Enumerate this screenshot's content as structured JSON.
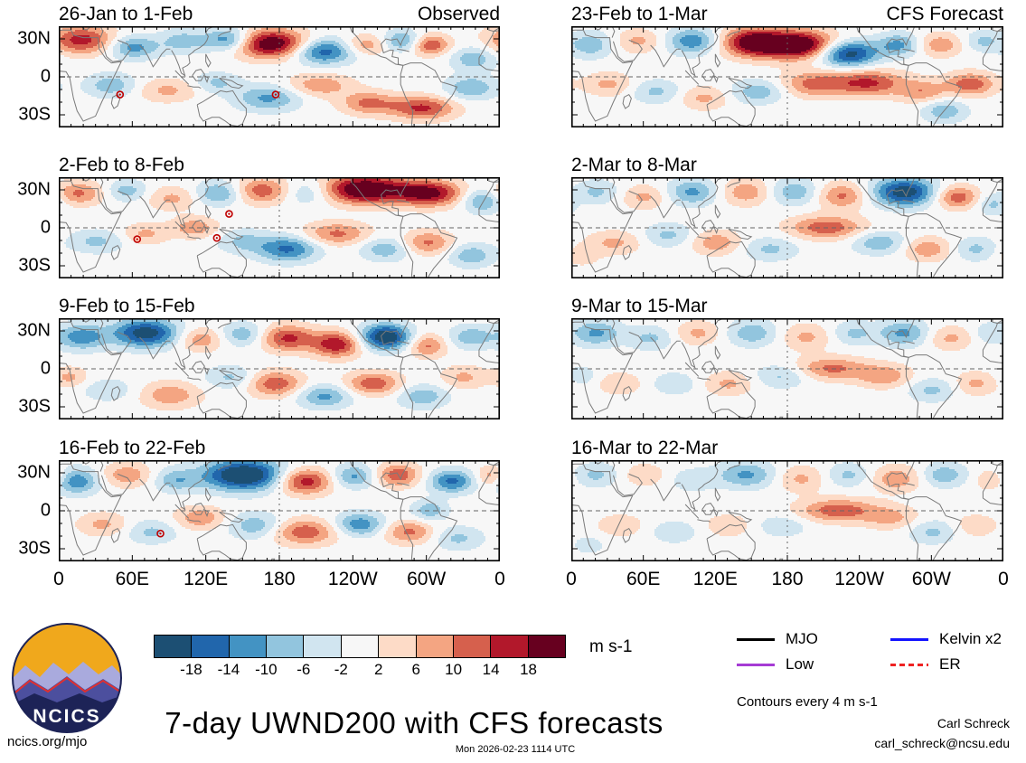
{
  "title": "7-day UWND200 with CFS forecasts",
  "axes": {
    "y_ticks": [
      "30N",
      "0",
      "30S"
    ],
    "x_ticks": [
      "0",
      "60E",
      "120E",
      "180",
      "120W",
      "60W",
      "0"
    ]
  },
  "colorbar": {
    "ticks": [
      "-18",
      "-14",
      "-10",
      "-6",
      "-2",
      "2",
      "6",
      "10",
      "14",
      "18"
    ],
    "unit": "m s-1",
    "colors": [
      "#1c4f73",
      "#2166ac",
      "#4393c3",
      "#92c5de",
      "#d1e5f0",
      "#f7f7f7",
      "#fddbc7",
      "#f4a582",
      "#d6604d",
      "#b2182b",
      "#67001f"
    ]
  },
  "legend": {
    "items": [
      {
        "label": "MJO",
        "color": "#000000",
        "dash": false
      },
      {
        "label": "Kelvin x2",
        "color": "#1414ff",
        "dash": false
      },
      {
        "label": "Low",
        "color": "#a63bd4",
        "dash": false
      },
      {
        "label": "ER",
        "color": "#ee2222",
        "dash": true
      }
    ],
    "note": "Contours every 4 m s-1"
  },
  "branding": {
    "logo_text": "NCICS"
  },
  "footer": {
    "site": "ncics.org/mjo",
    "timestamp": "Mon 2026-02-23 1114 UTC",
    "author": "Carl Schreck",
    "email": "carl_schreck@ncsu.edu"
  },
  "chart_data": {
    "type": "heatmap",
    "variable": "7-day UWND200 anomalies (observed and CFS forecast)",
    "units": "m s-1",
    "contour_interval_ms": 4,
    "levels": [
      -18,
      -14,
      -10,
      -6,
      -2,
      2,
      6,
      10,
      14,
      18
    ],
    "lon_range_deg": [
      0,
      360
    ],
    "lat_range_deg": [
      -40,
      40
    ],
    "columns": [
      "Observed",
      "CFS Forecast"
    ],
    "panels": [
      {
        "title": "26-Jan to 1-Feb",
        "corner": "Observed",
        "column": "Observed",
        "blobs": [
          [
            18,
            30,
            26,
            11,
            16
          ],
          [
            60,
            24,
            20,
            9,
            -12
          ],
          [
            100,
            29,
            18,
            9,
            -8
          ],
          [
            138,
            30,
            20,
            9,
            -15
          ],
          [
            172,
            27,
            30,
            11,
            23
          ],
          [
            215,
            21,
            24,
            10,
            -17
          ],
          [
            250,
            26,
            18,
            8,
            9
          ],
          [
            280,
            29,
            16,
            8,
            -12
          ],
          [
            302,
            26,
            16,
            8,
            14
          ],
          [
            338,
            15,
            18,
            9,
            -9
          ],
          [
            42,
            -6,
            20,
            9,
            -9
          ],
          [
            88,
            -10,
            24,
            9,
            7
          ],
          [
            128,
            -4,
            18,
            8,
            -7
          ],
          [
            170,
            -16,
            26,
            10,
            -11
          ],
          [
            212,
            -6,
            26,
            9,
            9
          ],
          [
            252,
            -20,
            22,
            9,
            11
          ],
          [
            296,
            -24,
            26,
            9,
            15
          ],
          [
            336,
            -8,
            20,
            9,
            -10
          ]
        ],
        "storms": [
          [
            50,
            -14
          ],
          [
            177,
            -14
          ]
        ]
      },
      {
        "title": "2-Feb to 8-Feb",
        "corner": "",
        "column": "Observed",
        "blobs": [
          [
            15,
            28,
            20,
            9,
            11
          ],
          [
            55,
            30,
            16,
            8,
            -8
          ],
          [
            92,
            24,
            20,
            9,
            7
          ],
          [
            130,
            28,
            18,
            9,
            -11
          ],
          [
            166,
            30,
            22,
            10,
            13
          ],
          [
            205,
            29,
            24,
            10,
            -9
          ],
          [
            248,
            31,
            36,
            11,
            25
          ],
          [
            302,
            28,
            26,
            10,
            19
          ],
          [
            345,
            22,
            16,
            9,
            -11
          ],
          [
            30,
            -10,
            22,
            9,
            -7
          ],
          [
            70,
            -4,
            18,
            8,
            7
          ],
          [
            110,
            1,
            18,
            8,
            9
          ],
          [
            150,
            -10,
            20,
            9,
            -7
          ],
          [
            186,
            -16,
            24,
            10,
            -15
          ],
          [
            226,
            -4,
            26,
            9,
            11
          ],
          [
            266,
            -16,
            20,
            9,
            -9
          ],
          [
            300,
            -11,
            20,
            9,
            11
          ],
          [
            336,
            -21,
            18,
            9,
            -9
          ]
        ],
        "storms": [
          [
            139,
            11
          ],
          [
            64,
            -9
          ],
          [
            129,
            -8
          ]
        ]
      },
      {
        "title": "9-Feb to 15-Feb",
        "corner": "",
        "column": "Observed",
        "blobs": [
          [
            18,
            26,
            20,
            10,
            -13
          ],
          [
            70,
            29,
            26,
            11,
            -21
          ],
          [
            115,
            24,
            18,
            9,
            9
          ],
          [
            150,
            28,
            18,
            9,
            -9
          ],
          [
            186,
            25,
            22,
            10,
            15
          ],
          [
            226,
            20,
            20,
            10,
            17
          ],
          [
            266,
            26,
            20,
            10,
            -23
          ],
          [
            300,
            19,
            15,
            9,
            11
          ],
          [
            336,
            26,
            18,
            9,
            -9
          ],
          [
            40,
            -16,
            22,
            9,
            -5
          ],
          [
            90,
            -20,
            24,
            10,
            9
          ],
          [
            140,
            -6,
            20,
            9,
            -7
          ],
          [
            176,
            -11,
            22,
            10,
            13
          ],
          [
            216,
            -21,
            22,
            9,
            -11
          ],
          [
            256,
            -11,
            22,
            9,
            13
          ],
          [
            296,
            -21,
            20,
            9,
            -9
          ],
          [
            330,
            -6,
            18,
            9,
            7
          ],
          [
            8,
            -6,
            14,
            8,
            7
          ]
        ],
        "storms": []
      },
      {
        "title": "16-Feb to 22-Feb",
        "corner": "",
        "column": "Observed",
        "blobs": [
          [
            14,
            24,
            18,
            10,
            -13
          ],
          [
            55,
            29,
            20,
            9,
            9
          ],
          [
            95,
            25,
            18,
            9,
            -9
          ],
          [
            150,
            29,
            32,
            12,
            -25
          ],
          [
            200,
            24,
            22,
            10,
            17
          ],
          [
            240,
            28,
            18,
            9,
            -11
          ],
          [
            276,
            29,
            18,
            9,
            13
          ],
          [
            320,
            24,
            18,
            9,
            -15
          ],
          [
            352,
            28,
            12,
            8,
            9
          ],
          [
            35,
            -10,
            20,
            9,
            7
          ],
          [
            75,
            -16,
            20,
            9,
            -7
          ],
          [
            115,
            -5,
            20,
            9,
            9
          ],
          [
            160,
            -11,
            22,
            10,
            -9
          ],
          [
            200,
            -16,
            26,
            10,
            13
          ],
          [
            245,
            -10,
            20,
            9,
            -13
          ],
          [
            285,
            -16,
            20,
            9,
            11
          ],
          [
            325,
            -21,
            20,
            9,
            -7
          ],
          [
            302,
            1,
            14,
            8,
            -9
          ]
        ],
        "storms": [
          [
            83,
            -18
          ]
        ]
      },
      {
        "title": "23-Feb to 1-Mar",
        "corner": "CFS Forecast",
        "column": "CFS Forecast",
        "blobs": [
          [
            15,
            26,
            18,
            10,
            -9
          ],
          [
            55,
            29,
            18,
            9,
            7
          ],
          [
            100,
            29,
            20,
            10,
            -13
          ],
          [
            150,
            28,
            24,
            11,
            21
          ],
          [
            188,
            26,
            30,
            11,
            25
          ],
          [
            230,
            19,
            24,
            10,
            -21
          ],
          [
            272,
            26,
            18,
            9,
            -11
          ],
          [
            306,
            26,
            18,
            9,
            9
          ],
          [
            342,
            29,
            14,
            8,
            -7
          ],
          [
            30,
            -5,
            20,
            9,
            7
          ],
          [
            70,
            -11,
            20,
            9,
            -7
          ],
          [
            110,
            -16,
            20,
            9,
            7
          ],
          [
            155,
            -11,
            22,
            9,
            -9
          ],
          [
            200,
            -5,
            26,
            10,
            11
          ],
          [
            246,
            -4,
            30,
            10,
            15
          ],
          [
            292,
            -11,
            20,
            9,
            9
          ],
          [
            332,
            -5,
            20,
            9,
            13
          ],
          [
            310,
            -26,
            18,
            9,
            -9
          ]
        ],
        "storms": []
      },
      {
        "title": "2-Mar to 8-Mar",
        "corner": "",
        "column": "CFS Forecast",
        "blobs": [
          [
            20,
            29,
            18,
            9,
            -7
          ],
          [
            60,
            25,
            18,
            9,
            7
          ],
          [
            100,
            29,
            20,
            10,
            -11
          ],
          [
            145,
            29,
            20,
            10,
            9
          ],
          [
            185,
            29,
            20,
            10,
            -9
          ],
          [
            225,
            26,
            20,
            10,
            11
          ],
          [
            277,
            29,
            26,
            11,
            -21
          ],
          [
            320,
            25,
            18,
            9,
            13
          ],
          [
            350,
            19,
            12,
            8,
            -7
          ],
          [
            35,
            -11,
            22,
            9,
            7
          ],
          [
            80,
            -5,
            20,
            9,
            -7
          ],
          [
            120,
            -11,
            20,
            9,
            9
          ],
          [
            165,
            -16,
            22,
            9,
            -7
          ],
          [
            212,
            1,
            30,
            9,
            13
          ],
          [
            256,
            -11,
            22,
            9,
            -9
          ],
          [
            296,
            -16,
            20,
            9,
            9
          ],
          [
            336,
            -16,
            18,
            9,
            -7
          ],
          [
            8,
            -21,
            14,
            8,
            5
          ]
        ],
        "storms": []
      },
      {
        "title": "9-Mar to 15-Mar",
        "corner": "",
        "column": "CFS Forecast",
        "blobs": [
          [
            20,
            29,
            20,
            10,
            -11
          ],
          [
            65,
            25,
            18,
            9,
            -7
          ],
          [
            105,
            29,
            18,
            9,
            7
          ],
          [
            150,
            29,
            20,
            10,
            -9
          ],
          [
            195,
            26,
            20,
            10,
            7
          ],
          [
            235,
            29,
            18,
            9,
            -7
          ],
          [
            276,
            29,
            20,
            10,
            -11
          ],
          [
            315,
            25,
            18,
            9,
            7
          ],
          [
            347,
            29,
            12,
            8,
            -5
          ],
          [
            40,
            -11,
            20,
            9,
            5
          ],
          [
            85,
            -11,
            20,
            9,
            -5
          ],
          [
            130,
            -11,
            20,
            9,
            7
          ],
          [
            175,
            -5,
            22,
            9,
            -7
          ],
          [
            216,
            1,
            30,
            9,
            11
          ],
          [
            260,
            -5,
            22,
            9,
            9
          ],
          [
            300,
            -16,
            20,
            9,
            -7
          ],
          [
            336,
            -11,
            18,
            9,
            7
          ],
          [
            8,
            -5,
            12,
            8,
            -5
          ]
        ],
        "storms": []
      },
      {
        "title": "16-Mar to 22-Mar",
        "corner": "",
        "column": "CFS Forecast",
        "blobs": [
          [
            20,
            29,
            18,
            9,
            -7
          ],
          [
            60,
            29,
            18,
            9,
            5
          ],
          [
            100,
            25,
            18,
            9,
            -5
          ],
          [
            145,
            29,
            24,
            10,
            -11
          ],
          [
            190,
            26,
            20,
            10,
            7
          ],
          [
            230,
            29,
            18,
            9,
            -7
          ],
          [
            270,
            26,
            20,
            10,
            9
          ],
          [
            310,
            29,
            18,
            9,
            -9
          ],
          [
            347,
            25,
            12,
            8,
            5
          ],
          [
            40,
            -11,
            20,
            9,
            5
          ],
          [
            85,
            -16,
            20,
            9,
            -5
          ],
          [
            130,
            -11,
            20,
            9,
            5
          ],
          [
            175,
            -11,
            22,
            9,
            -5
          ],
          [
            222,
            1,
            32,
            9,
            13
          ],
          [
            266,
            -5,
            22,
            9,
            7
          ],
          [
            300,
            -16,
            20,
            9,
            -7
          ],
          [
            336,
            -11,
            18,
            9,
            5
          ],
          [
            14,
            -26,
            14,
            8,
            -4
          ]
        ],
        "storms": []
      }
    ]
  }
}
